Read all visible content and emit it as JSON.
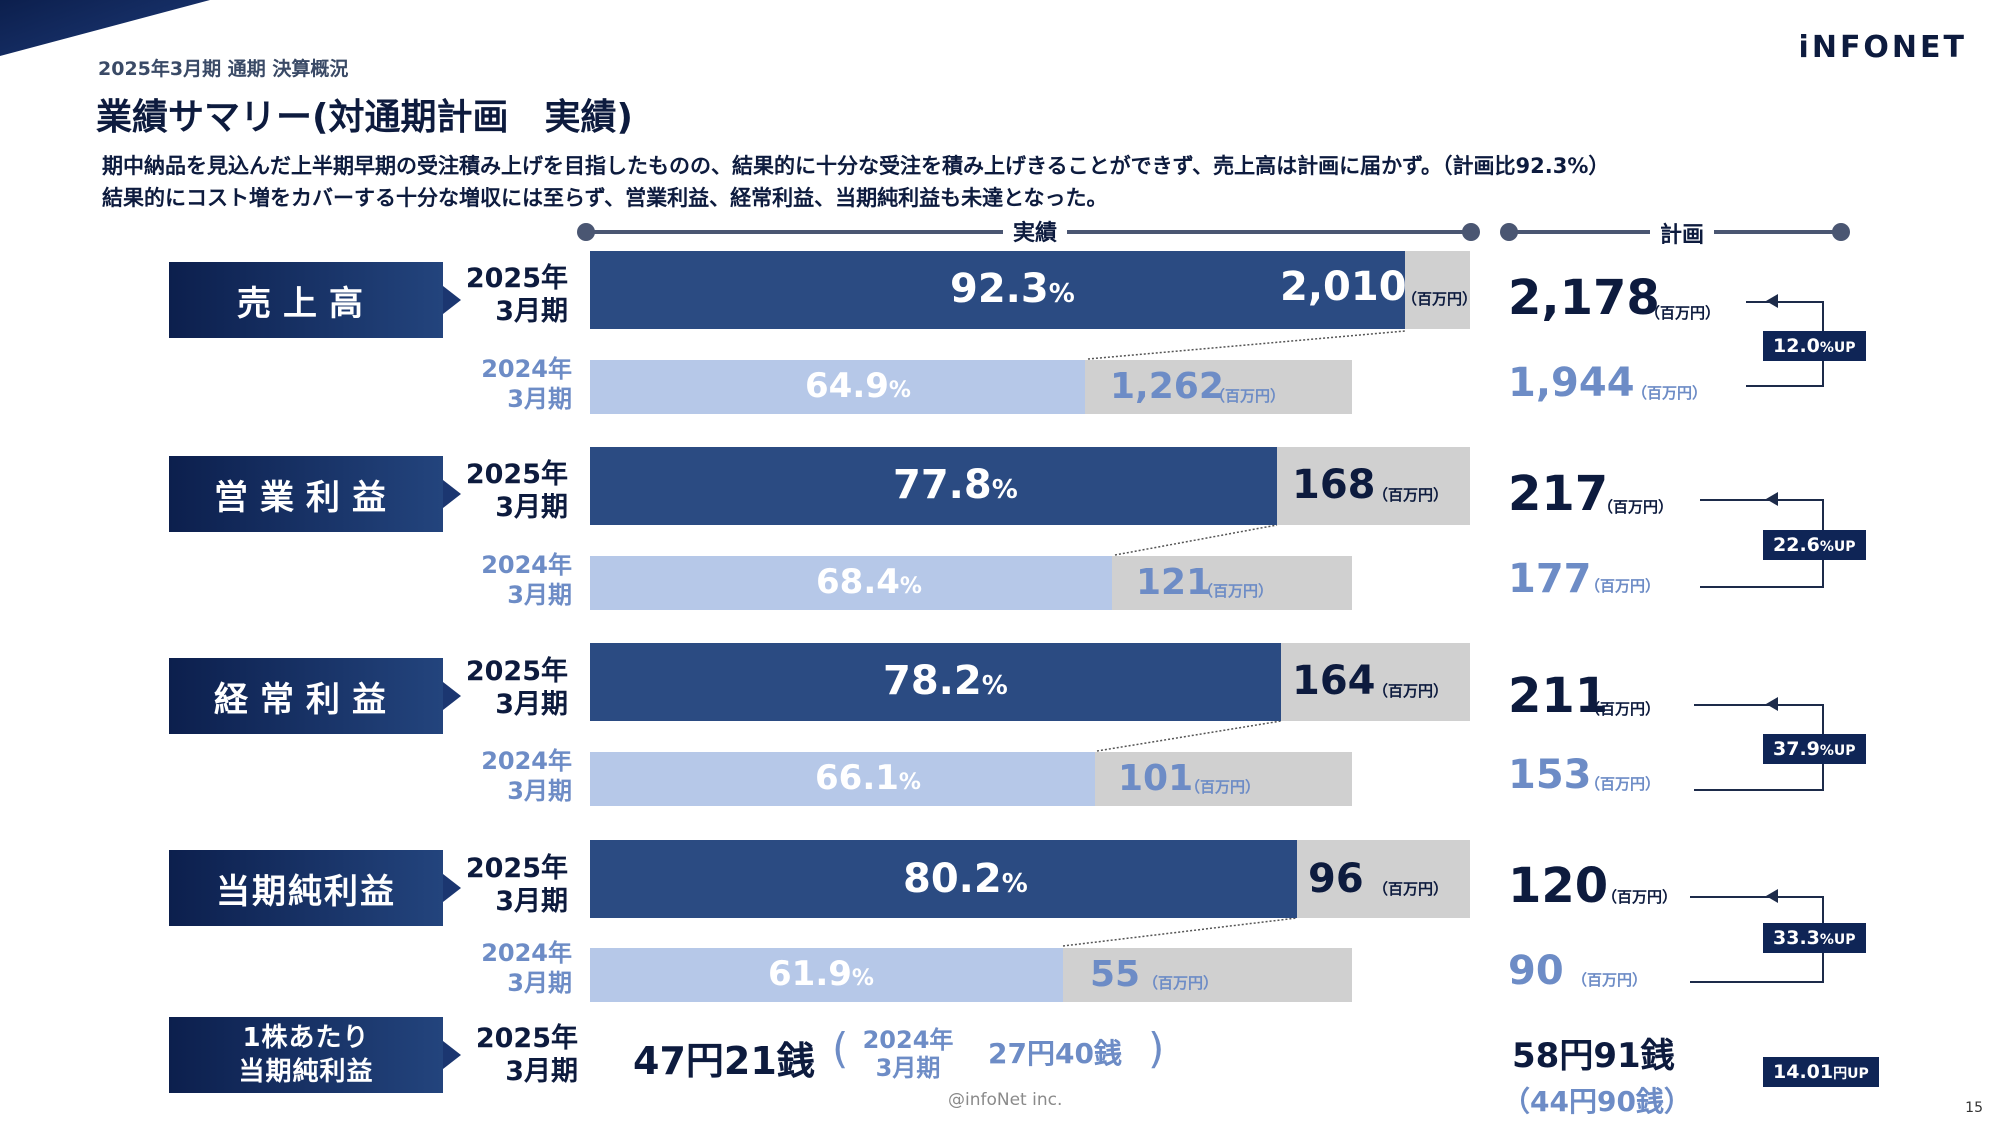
{
  "header": {
    "subtitle": "2025年3月期 通期 決算概況",
    "title": "業績サマリー(対通期計画　実績)",
    "logo": "iNFONET"
  },
  "lead": [
    "期中納品を見込んだ上半期早期の受注積み上げを目指したものの、結果的に十分な受注を積み上げきることができず、売上高は計画に届かず。（計画比92.3%）",
    "結果的にコスト増をカバーする十分な増収には至らず、営業利益、経常利益、当期純利益も未達となった。"
  ],
  "columns": {
    "actual": "実績",
    "plan": "計画"
  },
  "unit": "（百万円）",
  "pct_sign": "%",
  "periods": {
    "cur_year": "2025年",
    "cur_month": "3月期",
    "prev_year": "2024年",
    "prev_month": "3月期"
  },
  "metrics": [
    {
      "name": "売上高",
      "cur_pct": "92.3",
      "cur_value": "2,010",
      "prev_pct": "64.9",
      "prev_value": "1,262",
      "plan_cur": "2,178",
      "plan_prev": "1,944",
      "growth": "12.0",
      "growth_suffix": "%UP",
      "cur_ratio": 0.923,
      "prev_ratio": 0.649
    },
    {
      "name": "営業利益",
      "cur_pct": "77.8",
      "cur_value": "168",
      "prev_pct": "68.4",
      "prev_value": "121",
      "plan_cur": "217",
      "plan_prev": "177",
      "growth": "22.6",
      "growth_suffix": "%UP",
      "cur_ratio": 0.778,
      "prev_ratio": 0.684
    },
    {
      "name": "経常利益",
      "cur_pct": "78.2",
      "cur_value": "164",
      "prev_pct": "66.1",
      "prev_value": "101",
      "plan_cur": "211",
      "plan_prev": "153",
      "growth": "37.9",
      "growth_suffix": "%UP",
      "cur_ratio": 0.782,
      "prev_ratio": 0.661
    },
    {
      "name": "当期純利益",
      "cur_pct": "80.2",
      "cur_value": "96",
      "prev_pct": "61.9",
      "prev_value": "55",
      "plan_cur": "120",
      "plan_prev": "90",
      "growth": "33.3",
      "growth_suffix": "%UP",
      "cur_ratio": 0.802,
      "prev_ratio": 0.619
    }
  ],
  "eps": {
    "label_line1": "1株あたり",
    "label_line2": "当期純利益",
    "cur": "47円21銭",
    "open_paren": "(",
    "close_paren": ")",
    "prev": "27円40銭",
    "plan_cur": "58円91銭",
    "plan_prev": "（44円90銭）",
    "growth": "14.01",
    "growth_suffix": "円UP"
  },
  "footer": "@infoNet inc.",
  "page_number": "15"
}
